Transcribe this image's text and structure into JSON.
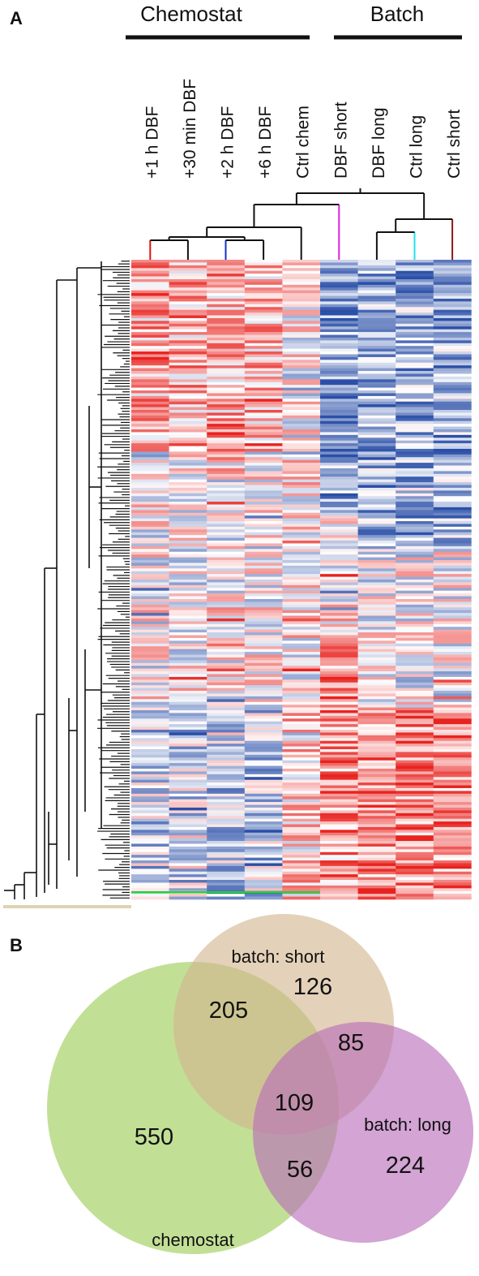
{
  "panels": {
    "a": "A",
    "b": "B"
  },
  "groups": {
    "chemostat": "Chemostat",
    "batch": "Batch"
  },
  "chart_data": [
    {
      "type": "heatmap",
      "columns": [
        "+1 h DBF",
        "+30 min DBF",
        "+2 h DBF",
        "+6 h DBF",
        "Ctrl chem",
        "DBF short",
        "DBF long",
        "Ctrl long",
        "Ctrl short"
      ],
      "column_groups": [
        {
          "name": "Chemostat",
          "columns": [
            "+1 h DBF",
            "+30 min DBF",
            "+2 h DBF",
            "+6 h DBF",
            "Ctrl chem"
          ]
        },
        {
          "name": "Batch",
          "columns": [
            "DBF short",
            "DBF long",
            "Ctrl long",
            "Ctrl short"
          ]
        }
      ],
      "color_scale": {
        "low": "#2a4fa8",
        "mid": "#ffffff",
        "high": "#e8231f"
      },
      "dendrogram_colors": {
        "+1 h DBF": "#e01010",
        "+2 h DBF": "#1530c8",
        "DBF short": "#e020e0",
        "Ctrl long": "#20e0e8",
        "Ctrl short": "#8b1a1a"
      },
      "row_dendrogram": true
    },
    {
      "type": "venn",
      "sets": [
        {
          "name": "chemostat",
          "color": "#9dcb56"
        },
        {
          "name": "batch: short",
          "color": "#d4b48e"
        },
        {
          "name": "batch: long",
          "color": "#b86cba"
        }
      ],
      "regions": [
        {
          "sets": [
            "chemostat"
          ],
          "value": 550
        },
        {
          "sets": [
            "batch: short"
          ],
          "value": 126
        },
        {
          "sets": [
            "batch: long"
          ],
          "value": 224
        },
        {
          "sets": [
            "chemostat",
            "batch: short"
          ],
          "value": 205
        },
        {
          "sets": [
            "batch: short",
            "batch: long"
          ],
          "value": 85
        },
        {
          "sets": [
            "chemostat",
            "batch: long"
          ],
          "value": 56
        },
        {
          "sets": [
            "chemostat",
            "batch: short",
            "batch: long"
          ],
          "value": 109
        }
      ]
    }
  ]
}
